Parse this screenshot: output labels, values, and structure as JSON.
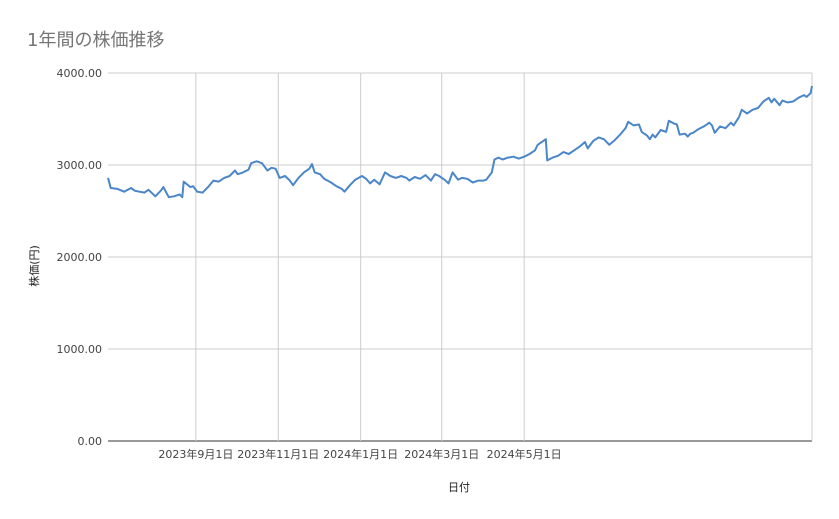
{
  "title": "1年間の株価推移",
  "chart_data": {
    "type": "line",
    "title": "1年間の株価推移",
    "xlabel": "日付",
    "ylabel": "株価(円)",
    "ylim": [
      0,
      4000
    ],
    "yticks": [
      "0.00",
      "1000.00",
      "2000.00",
      "3000.00",
      "4000.00"
    ],
    "xticks": [
      "2023年9月1日",
      "2023年11月1日",
      "2024年1月1日",
      "2024年3月1日",
      "2024年5月1日"
    ],
    "grid": true,
    "series": [
      {
        "color": "#4a86c8",
        "points": [
          [
            "2023-06-28",
            2860
          ],
          [
            "2023-06-30",
            2750
          ],
          [
            "2023-07-05",
            2740
          ],
          [
            "2023-07-10",
            2710
          ],
          [
            "2023-07-15",
            2750
          ],
          [
            "2023-07-18",
            2720
          ],
          [
            "2023-07-25",
            2700
          ],
          [
            "2023-07-28",
            2730
          ],
          [
            "2023-08-02",
            2660
          ],
          [
            "2023-08-06",
            2720
          ],
          [
            "2023-08-08",
            2760
          ],
          [
            "2023-08-12",
            2650
          ],
          [
            "2023-08-16",
            2660
          ],
          [
            "2023-08-20",
            2680
          ],
          [
            "2023-08-22",
            2650
          ],
          [
            "2023-08-23",
            2820
          ],
          [
            "2023-08-28",
            2760
          ],
          [
            "2023-08-30",
            2770
          ],
          [
            "2023-09-02",
            2710
          ],
          [
            "2023-09-06",
            2700
          ],
          [
            "2023-09-10",
            2760
          ],
          [
            "2023-09-14",
            2830
          ],
          [
            "2023-09-18",
            2820
          ],
          [
            "2023-09-22",
            2860
          ],
          [
            "2023-09-26",
            2880
          ],
          [
            "2023-09-30",
            2940
          ],
          [
            "2023-10-02",
            2900
          ],
          [
            "2023-10-06",
            2920
          ],
          [
            "2023-10-10",
            2950
          ],
          [
            "2023-10-12",
            3020
          ],
          [
            "2023-10-16",
            3040
          ],
          [
            "2023-10-20",
            3020
          ],
          [
            "2023-10-24",
            2940
          ],
          [
            "2023-10-27",
            2970
          ],
          [
            "2023-10-30",
            2960
          ],
          [
            "2023-11-02",
            2860
          ],
          [
            "2023-11-06",
            2880
          ],
          [
            "2023-11-09",
            2840
          ],
          [
            "2023-11-12",
            2780
          ],
          [
            "2023-11-16",
            2860
          ],
          [
            "2023-11-20",
            2920
          ],
          [
            "2023-11-24",
            2960
          ],
          [
            "2023-11-26",
            3010
          ],
          [
            "2023-11-28",
            2920
          ],
          [
            "2023-12-02",
            2900
          ],
          [
            "2023-12-05",
            2850
          ],
          [
            "2023-12-10",
            2810
          ],
          [
            "2023-12-14",
            2770
          ],
          [
            "2023-12-18",
            2740
          ],
          [
            "2023-12-20",
            2710
          ],
          [
            "2023-12-24",
            2780
          ],
          [
            "2023-12-28",
            2840
          ],
          [
            "2024-01-02",
            2880
          ],
          [
            "2024-01-05",
            2850
          ],
          [
            "2024-01-08",
            2800
          ],
          [
            "2024-01-11",
            2840
          ],
          [
            "2024-01-15",
            2790
          ],
          [
            "2024-01-19",
            2920
          ],
          [
            "2024-01-23",
            2880
          ],
          [
            "2024-01-27",
            2860
          ],
          [
            "2024-01-31",
            2880
          ],
          [
            "2024-02-04",
            2860
          ],
          [
            "2024-02-06",
            2830
          ],
          [
            "2024-02-10",
            2870
          ],
          [
            "2024-02-14",
            2850
          ],
          [
            "2024-02-18",
            2890
          ],
          [
            "2024-02-22",
            2830
          ],
          [
            "2024-02-25",
            2900
          ],
          [
            "2024-02-28",
            2880
          ],
          [
            "2024-03-03",
            2840
          ],
          [
            "2024-03-06",
            2800
          ],
          [
            "2024-03-09",
            2920
          ],
          [
            "2024-03-13",
            2840
          ],
          [
            "2024-03-16",
            2860
          ],
          [
            "2024-03-20",
            2850
          ],
          [
            "2024-03-24",
            2810
          ],
          [
            "2024-03-28",
            2830
          ],
          [
            "2024-04-01",
            2830
          ],
          [
            "2024-04-03",
            2840
          ],
          [
            "2024-04-07",
            2920
          ],
          [
            "2024-04-09",
            3060
          ],
          [
            "2024-04-12",
            3080
          ],
          [
            "2024-04-15",
            3060
          ],
          [
            "2024-04-19",
            3080
          ],
          [
            "2024-04-23",
            3090
          ],
          [
            "2024-04-27",
            3070
          ],
          [
            "2024-05-01",
            3090
          ],
          [
            "2024-05-05",
            3120
          ],
          [
            "2024-05-09",
            3160
          ],
          [
            "2024-05-11",
            3220
          ],
          [
            "2024-05-15",
            3260
          ],
          [
            "2024-05-17",
            3280
          ],
          [
            "2024-05-18",
            3050
          ],
          [
            "2024-05-22",
            3080
          ],
          [
            "2024-05-26",
            3100
          ],
          [
            "2024-05-30",
            3140
          ],
          [
            "2024-06-03",
            3120
          ],
          [
            "2024-06-07",
            3160
          ],
          [
            "2024-06-11",
            3200
          ],
          [
            "2024-06-15",
            3250
          ],
          [
            "2024-06-17",
            3180
          ],
          [
            "2024-06-21",
            3260
          ],
          [
            "2024-06-25",
            3300
          ],
          [
            "2024-06-29",
            3280
          ],
          [
            "2024-07-03",
            3220
          ],
          [
            "2024-07-07",
            3270
          ],
          [
            "2024-07-11",
            3330
          ],
          [
            "2024-07-15",
            3400
          ],
          [
            "2024-07-17",
            3470
          ],
          [
            "2024-07-21",
            3430
          ],
          [
            "2024-07-25",
            3440
          ],
          [
            "2024-07-27",
            3360
          ],
          [
            "2024-07-31",
            3320
          ],
          [
            "2024-08-02",
            3280
          ],
          [
            "2024-08-04",
            3330
          ],
          [
            "2024-08-06",
            3300
          ],
          [
            "2024-08-10",
            3380
          ],
          [
            "2024-08-14",
            3360
          ],
          [
            "2024-08-16",
            3480
          ],
          [
            "2024-08-20",
            3450
          ],
          [
            "2024-08-22",
            3440
          ],
          [
            "2024-08-24",
            3330
          ],
          [
            "2024-08-28",
            3340
          ],
          [
            "2024-08-30",
            3310
          ],
          [
            "2024-09-01",
            3340
          ],
          [
            "2024-09-03",
            3350
          ],
          [
            "2024-09-07",
            3390
          ],
          [
            "2024-09-11",
            3420
          ],
          [
            "2024-09-15",
            3460
          ],
          [
            "2024-09-17",
            3430
          ],
          [
            "2024-09-19",
            3350
          ],
          [
            "2024-09-23",
            3420
          ],
          [
            "2024-09-27",
            3400
          ],
          [
            "2024-10-01",
            3460
          ],
          [
            "2024-10-03",
            3430
          ],
          [
            "2024-10-07",
            3520
          ],
          [
            "2024-10-09",
            3600
          ],
          [
            "2024-10-13",
            3560
          ],
          [
            "2024-10-17",
            3600
          ],
          [
            "2024-10-21",
            3620
          ],
          [
            "2024-10-25",
            3690
          ],
          [
            "2024-10-29",
            3730
          ],
          [
            "2024-10-31",
            3680
          ],
          [
            "2024-11-02",
            3720
          ],
          [
            "2024-11-06",
            3650
          ],
          [
            "2024-11-08",
            3700
          ],
          [
            "2024-11-12",
            3680
          ],
          [
            "2024-11-16",
            3690
          ],
          [
            "2024-11-20",
            3730
          ],
          [
            "2024-11-24",
            3760
          ],
          [
            "2024-11-26",
            3740
          ],
          [
            "2024-11-29",
            3780
          ],
          [
            "2024-11-30",
            3860
          ]
        ]
      }
    ]
  }
}
